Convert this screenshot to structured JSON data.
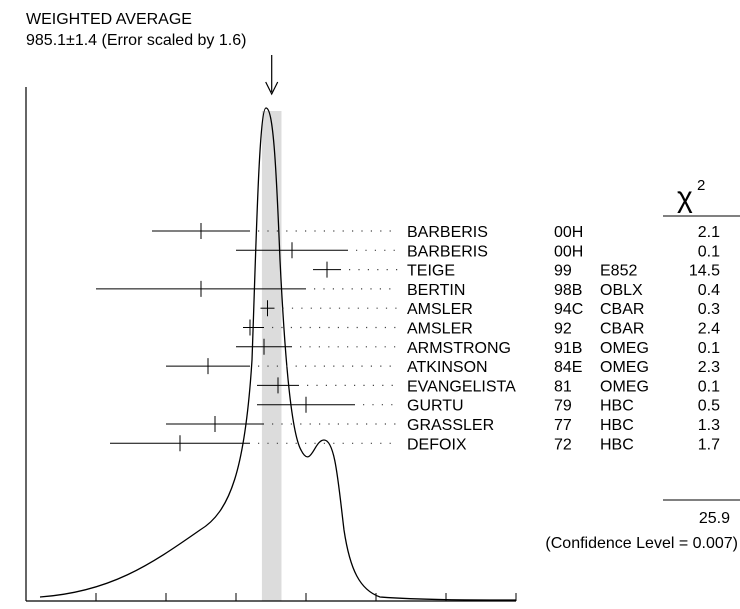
{
  "chart_data": {
    "type": "scatter",
    "title_line1": "WEIGHTED AVERAGE",
    "title_line2": "985.1±1.4 (Error scaled by 1.6)",
    "weighted_average": 985.1,
    "weighted_error": 1.4,
    "error_scale": 1.6,
    "xlim": [
      950,
      1020
    ],
    "xticks": [
      950,
      960,
      970,
      980,
      990,
      1000,
      1010,
      1020
    ],
    "chi2_symbol": "χ",
    "chi2_power": "2",
    "chi2_total": "25.9",
    "confidence_text": "(Confidence Level = 0.007)",
    "measurements": [
      {
        "author": "BARBERIS",
        "year": "00H",
        "tech": "",
        "value": 975.0,
        "err_lo": 7.0,
        "err_hi": 7.0,
        "chi2": "2.1"
      },
      {
        "author": "BARBERIS",
        "year": "00H",
        "tech": "",
        "value": 988.0,
        "err_lo": 8.0,
        "err_hi": 8.0,
        "chi2": "0.1"
      },
      {
        "author": "TEIGE",
        "year": "99",
        "tech": "E852",
        "value": 993.0,
        "err_lo": 2.0,
        "err_hi": 2.0,
        "chi2": "14.5"
      },
      {
        "author": "BERTIN",
        "year": "98B",
        "tech": "OBLX",
        "value": 975.0,
        "err_lo": 15.0,
        "err_hi": 15.0,
        "chi2": "0.4"
      },
      {
        "author": "AMSLER",
        "year": "94C",
        "tech": "CBAR",
        "value": 984.5,
        "err_lo": 1.0,
        "err_hi": 1.0,
        "chi2": "0.3"
      },
      {
        "author": "AMSLER",
        "year": "92",
        "tech": "CBAR",
        "value": 982.0,
        "err_lo": 1.0,
        "err_hi": 2.0,
        "chi2": "2.4"
      },
      {
        "author": "ARMSTRONG",
        "year": "91B",
        "tech": "OMEG",
        "value": 984.0,
        "err_lo": 4.0,
        "err_hi": 4.0,
        "chi2": "0.1"
      },
      {
        "author": "ATKINSON",
        "year": "84E",
        "tech": "OMEG",
        "value": 976.0,
        "err_lo": 6.0,
        "err_hi": 6.0,
        "chi2": "2.3"
      },
      {
        "author": "EVANGELISTA",
        "year": "81",
        "tech": "OMEG",
        "value": 986.0,
        "err_lo": 3.0,
        "err_hi": 3.0,
        "chi2": "0.1"
      },
      {
        "author": "GURTU",
        "year": "79",
        "tech": "HBC",
        "value": 990.0,
        "err_lo": 7.0,
        "err_hi": 7.0,
        "chi2": "0.5"
      },
      {
        "author": "GRASSLER",
        "year": "77",
        "tech": "HBC",
        "value": 977.0,
        "err_lo": 7.0,
        "err_hi": 7.0,
        "chi2": "1.3"
      },
      {
        "author": "DEFOIX",
        "year": "72",
        "tech": "HBC",
        "value": 972.0,
        "err_lo": 10.0,
        "err_hi": 10.0,
        "chi2": "1.7"
      }
    ]
  }
}
